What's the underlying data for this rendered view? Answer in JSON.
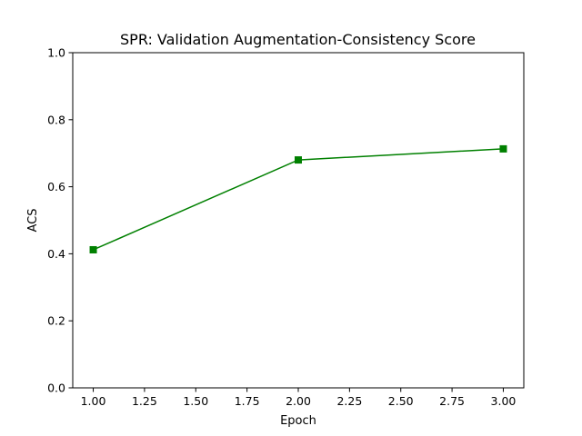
{
  "chart_data": {
    "type": "line",
    "title": "SPR: Validation Augmentation-Consistency Score",
    "xlabel": "Epoch",
    "ylabel": "ACS",
    "xlim": [
      0.9,
      3.1
    ],
    "ylim": [
      0.0,
      1.0
    ],
    "x_ticks": [
      1.0,
      1.25,
      1.5,
      1.75,
      2.0,
      2.25,
      2.5,
      2.75,
      3.0
    ],
    "x_tick_labels": [
      "1.00",
      "1.25",
      "1.50",
      "1.75",
      "2.00",
      "2.25",
      "2.50",
      "2.75",
      "3.00"
    ],
    "y_ticks": [
      0.0,
      0.2,
      0.4,
      0.6,
      0.8,
      1.0
    ],
    "y_tick_labels": [
      "0.0",
      "0.2",
      "0.4",
      "0.6",
      "0.8",
      "1.0"
    ],
    "grid": false,
    "series": [
      {
        "color": "#008000",
        "marker": "square",
        "x": [
          1,
          2,
          3
        ],
        "y": [
          0.412,
          0.68,
          0.713
        ]
      }
    ]
  }
}
